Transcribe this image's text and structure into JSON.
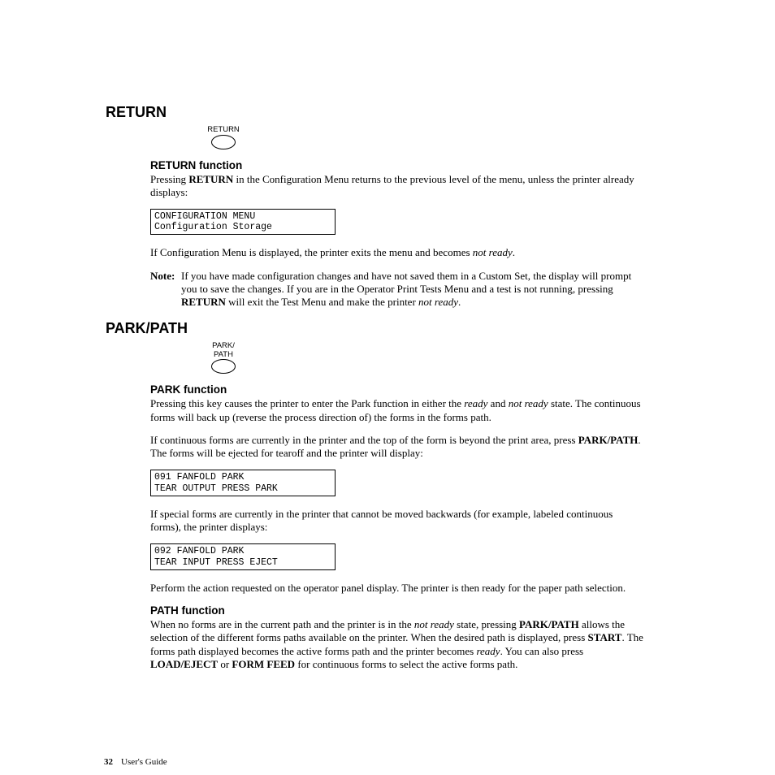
{
  "section1": {
    "heading": "RETURN",
    "button_label": "RETURN",
    "subheading": "RETURN function",
    "para1_pre": "Pressing ",
    "para1_bold": "RETURN",
    "para1_post": " in the Configuration Menu returns to the previous level of the menu, unless the printer already displays:",
    "lcd_line1": "CONFIGURATION MENU",
    "lcd_line2": "Configuration Storage",
    "para2_pre": "If Configuration Menu is displayed, the printer exits the menu and becomes ",
    "para2_ital": "not ready",
    "para2_post": ".",
    "note_label": "Note:",
    "note_pre": "If you have made configuration changes and have not saved them in a Custom Set, the display will prompt you to save the changes. If you are in the Operator Print Tests Menu and a test is not running, pressing ",
    "note_bold": "RETURN",
    "note_mid": " will exit the Test Menu and make the printer ",
    "note_ital": "not ready",
    "note_post": "."
  },
  "section2": {
    "heading": "PARK/PATH",
    "button_label1": "PARK/",
    "button_label2": "PATH",
    "sub1": "PARK function",
    "s1_para1_pre": "Pressing this key causes the printer to enter the Park function in either the ",
    "s1_para1_ital1": "ready",
    "s1_para1_mid": " and ",
    "s1_para1_ital2": "not ready",
    "s1_para1_post": " state. The continuous forms will back up (reverse the process direction of) the forms in the forms path.",
    "s1_para2_pre": "If continuous forms are currently in the printer and the top of the form is beyond the print area, press ",
    "s1_para2_bold": "PARK/PATH",
    "s1_para2_post": ". The forms will be ejected for tearoff and the printer will display:",
    "lcd1_line1": "091 FANFOLD PARK",
    "lcd1_line2": "TEAR OUTPUT PRESS PARK",
    "s1_para3": "If special forms are currently in the printer that cannot be moved backwards (for example, labeled continuous forms), the printer displays:",
    "lcd2_line1": "092 FANFOLD PARK",
    "lcd2_line2": "TEAR INPUT PRESS EJECT",
    "s1_para4": "Perform the action requested on the operator panel display. The printer is then ready for the paper path selection.",
    "sub2": "PATH function",
    "s2_p_pre": "When no forms are in the current path and the printer is in the ",
    "s2_p_ital1": "not ready",
    "s2_p_t1": " state, pressing ",
    "s2_p_b1": "PARK/PATH",
    "s2_p_t2": " allows the selection of the different forms paths available on the printer. When the desired path is displayed, press ",
    "s2_p_b2": "START",
    "s2_p_t3": ". The forms path displayed becomes the active forms path and the printer becomes ",
    "s2_p_ital2": "ready",
    "s2_p_t4": ". You can also press ",
    "s2_p_b3": "LOAD/EJECT",
    "s2_p_t5": " or ",
    "s2_p_b4": "FORM FEED",
    "s2_p_t6": " for continuous forms to select the active forms path."
  },
  "footer": {
    "page": "32",
    "title": "User's Guide"
  }
}
